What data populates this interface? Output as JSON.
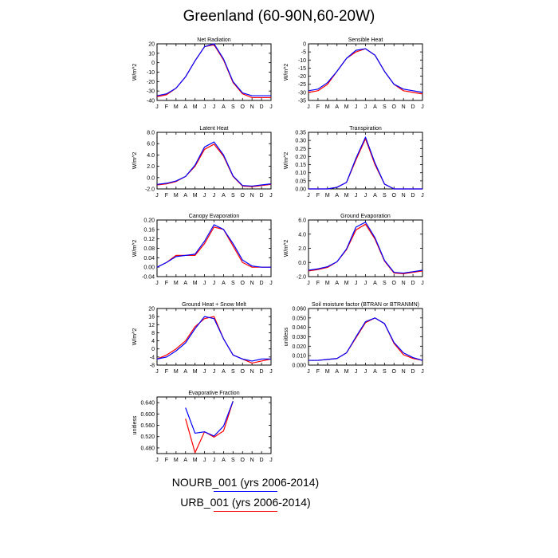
{
  "title": "Greenland (60-90N,60-20W)",
  "months": [
    "J",
    "F",
    "M",
    "A",
    "M",
    "J",
    "J",
    "A",
    "S",
    "O",
    "N",
    "D",
    "J"
  ],
  "colors": {
    "NOURB": "#0000ff",
    "URB": "#ff0000"
  },
  "legend": [
    {
      "label": "NOURB_001 (yrs 2006-2014)",
      "color": "#0000ff"
    },
    {
      "label": "URB_001 (yrs 2006-2014)",
      "color": "#ff0000"
    }
  ],
  "chart_data": [
    {
      "type": "line",
      "title": "Net Radiation",
      "ylabel": "W/m^2",
      "ylim": [
        -40,
        20
      ],
      "yticks": [
        20,
        10,
        0,
        -10,
        -20,
        -30,
        -40
      ],
      "yticklabels": [
        "20",
        "10",
        "0",
        "-10",
        "-20",
        "-30",
        "-40"
      ],
      "series": [
        {
          "name": "NOURB_001 (yrs 2006-2014)",
          "values": [
            -35,
            -33,
            -27,
            -15,
            2,
            17,
            20,
            4,
            -20,
            -32,
            -35,
            -35,
            -35
          ]
        },
        {
          "name": "URB_001 (yrs 2006-2014)",
          "values": [
            -36,
            -34,
            -27,
            -15,
            2,
            17,
            19,
            3,
            -21,
            -33,
            -37,
            -37,
            -37
          ]
        }
      ]
    },
    {
      "type": "line",
      "title": "Sensible Heat",
      "ylabel": "W/m^2",
      "ylim": [
        -35,
        0
      ],
      "yticks": [
        0,
        -5,
        -10,
        -15,
        -20,
        -25,
        -30,
        -35
      ],
      "yticklabels": [
        "0",
        "-5",
        "-10",
        "-15",
        "-20",
        "-25",
        "-30",
        "-35"
      ],
      "series": [
        {
          "name": "NOURB_001 (yrs 2006-2014)",
          "values": [
            -29,
            -28,
            -24,
            -17,
            -9,
            -4,
            -3,
            -7,
            -17,
            -25,
            -28,
            -29,
            -30
          ]
        },
        {
          "name": "URB_001 (yrs 2006-2014)",
          "values": [
            -30,
            -29,
            -25,
            -17,
            -9,
            -5,
            -3,
            -7,
            -17,
            -25,
            -29,
            -30,
            -31
          ]
        }
      ]
    },
    {
      "type": "line",
      "title": "Latent Heat",
      "ylabel": "W/m^2",
      "ylim": [
        -2,
        8
      ],
      "yticks": [
        8,
        6,
        4,
        2,
        0,
        -2
      ],
      "yticklabels": [
        "8.0",
        "6.0",
        "4.0",
        "2.0",
        "0.0",
        "-2.0"
      ],
      "series": [
        {
          "name": "NOURB_001 (yrs 2006-2014)",
          "values": [
            -1.2,
            -1.0,
            -0.6,
            0.2,
            2.2,
            5.4,
            6.3,
            4.0,
            0.3,
            -1.4,
            -1.5,
            -1.3,
            -1.1
          ]
        },
        {
          "name": "URB_001 (yrs 2006-2014)",
          "values": [
            -1.3,
            -1.1,
            -0.7,
            0.2,
            2.0,
            5.0,
            5.9,
            3.8,
            0.2,
            -1.5,
            -1.6,
            -1.4,
            -1.2
          ]
        }
      ]
    },
    {
      "type": "line",
      "title": "Transpiration",
      "ylabel": "W/m^2",
      "ylim": [
        0,
        0.35
      ],
      "yticks": [
        0.35,
        0.3,
        0.25,
        0.2,
        0.15,
        0.1,
        0.05,
        0
      ],
      "yticklabels": [
        "0.35",
        "0.30",
        "0.25",
        "0.20",
        "0.15",
        "0.10",
        "0.05",
        "0.00"
      ],
      "series": [
        {
          "name": "NOURB_001 (yrs 2006-2014)",
          "values": [
            0,
            0,
            0,
            0.01,
            0.04,
            0.19,
            0.32,
            0.16,
            0.03,
            0,
            0,
            0,
            0
          ]
        },
        {
          "name": "URB_001 (yrs 2006-2014)",
          "values": [
            0,
            0,
            0,
            0.01,
            0.04,
            0.18,
            0.31,
            0.15,
            0.03,
            0,
            0,
            0,
            0
          ]
        }
      ]
    },
    {
      "type": "line",
      "title": "Canopy Evaporation",
      "ylabel": "W/m^2",
      "ylim": [
        -0.04,
        0.2
      ],
      "yticks": [
        0.2,
        0.16,
        0.12,
        0.08,
        0.04,
        0,
        -0.04
      ],
      "yticklabels": [
        "0.20",
        "0.16",
        "0.12",
        "0.08",
        "0.04",
        "0.00",
        "-0.04"
      ],
      "series": [
        {
          "name": "NOURB_001 (yrs 2006-2014)",
          "values": [
            0.0,
            0.02,
            0.045,
            0.05,
            0.055,
            0.11,
            0.18,
            0.16,
            0.1,
            0.03,
            0.005,
            0.0,
            0.0
          ]
        },
        {
          "name": "URB_001 (yrs 2006-2014)",
          "values": [
            0.0,
            0.02,
            0.05,
            0.05,
            0.05,
            0.1,
            0.17,
            0.16,
            0.09,
            0.02,
            0.0,
            0.0,
            0.0
          ]
        }
      ]
    },
    {
      "type": "line",
      "title": "Ground Evaporation",
      "ylabel": "W/m^2",
      "ylim": [
        -2,
        6
      ],
      "yticks": [
        6,
        4,
        2,
        0,
        -2
      ],
      "yticklabels": [
        "6.0",
        "4.0",
        "2.0",
        "0.0",
        "-2.0"
      ],
      "series": [
        {
          "name": "NOURB_001 (yrs 2006-2014)",
          "values": [
            -1.1,
            -0.9,
            -0.6,
            0.1,
            1.9,
            5.0,
            5.7,
            3.5,
            0.3,
            -1.4,
            -1.5,
            -1.3,
            -1.1
          ]
        },
        {
          "name": "URB_001 (yrs 2006-2014)",
          "values": [
            -1.2,
            -1.0,
            -0.7,
            0.1,
            1.8,
            4.6,
            5.4,
            3.3,
            0.2,
            -1.5,
            -1.6,
            -1.4,
            -1.2
          ]
        }
      ]
    },
    {
      "type": "line",
      "title": "Ground Heat + Snow Melt",
      "ylabel": "W/m^2",
      "ylim": [
        -8,
        20
      ],
      "yticks": [
        20,
        16,
        12,
        8,
        4,
        0,
        -4,
        -8
      ],
      "yticklabels": [
        "20",
        "16",
        "12",
        "8",
        "4",
        "0",
        "-4",
        "-8"
      ],
      "series": [
        {
          "name": "NOURB_001 (yrs 2006-2014)",
          "values": [
            -5,
            -4,
            -1,
            3,
            10,
            16,
            15,
            5,
            -3,
            -5,
            -6,
            -5,
            -5
          ]
        },
        {
          "name": "URB_001 (yrs 2006-2014)",
          "values": [
            -5,
            -3,
            0,
            4,
            11,
            15,
            16,
            5,
            -3,
            -5,
            -7,
            -6,
            -5
          ]
        }
      ]
    },
    {
      "type": "line",
      "title": "Soil moisture factor (BTRAN or BTRANMN)",
      "ylabel": "unitless",
      "ylim": [
        0,
        0.06
      ],
      "yticks": [
        0.06,
        0.05,
        0.04,
        0.03,
        0.02,
        0.01,
        0
      ],
      "yticklabels": [
        "0.060",
        "0.050",
        "0.040",
        "0.030",
        "0.020",
        "0.010",
        "0.000"
      ],
      "series": [
        {
          "name": "NOURB_001 (yrs 2006-2014)",
          "values": [
            0.005,
            0.005,
            0.006,
            0.007,
            0.013,
            0.03,
            0.046,
            0.05,
            0.044,
            0.024,
            0.013,
            0.008,
            0.005
          ]
        },
        {
          "name": "URB_001 (yrs 2006-2014)",
          "values": [
            0.005,
            0.005,
            0.006,
            0.007,
            0.013,
            0.029,
            0.045,
            0.05,
            0.044,
            0.023,
            0.011,
            0.007,
            0.005
          ]
        }
      ]
    },
    {
      "type": "line",
      "title": "Evaporative Fraction",
      "ylabel": "unitless",
      "ylim": [
        0.46,
        0.66
      ],
      "yticks": [
        0.64,
        0.6,
        0.56,
        0.52,
        0.48
      ],
      "yticklabels": [
        "0.640",
        "0.600",
        "0.560",
        "0.520",
        "0.480"
      ],
      "series": [
        {
          "name": "NOURB_001 (yrs 2006-2014)",
          "values": [
            null,
            null,
            null,
            0.622,
            0.532,
            0.537,
            0.522,
            0.557,
            0.645,
            null,
            null,
            null,
            null
          ]
        },
        {
          "name": "URB_001 (yrs 2006-2014)",
          "values": [
            null,
            null,
            null,
            0.583,
            0.463,
            0.537,
            0.518,
            0.54,
            0.645,
            null,
            null,
            null,
            null
          ]
        }
      ]
    }
  ]
}
